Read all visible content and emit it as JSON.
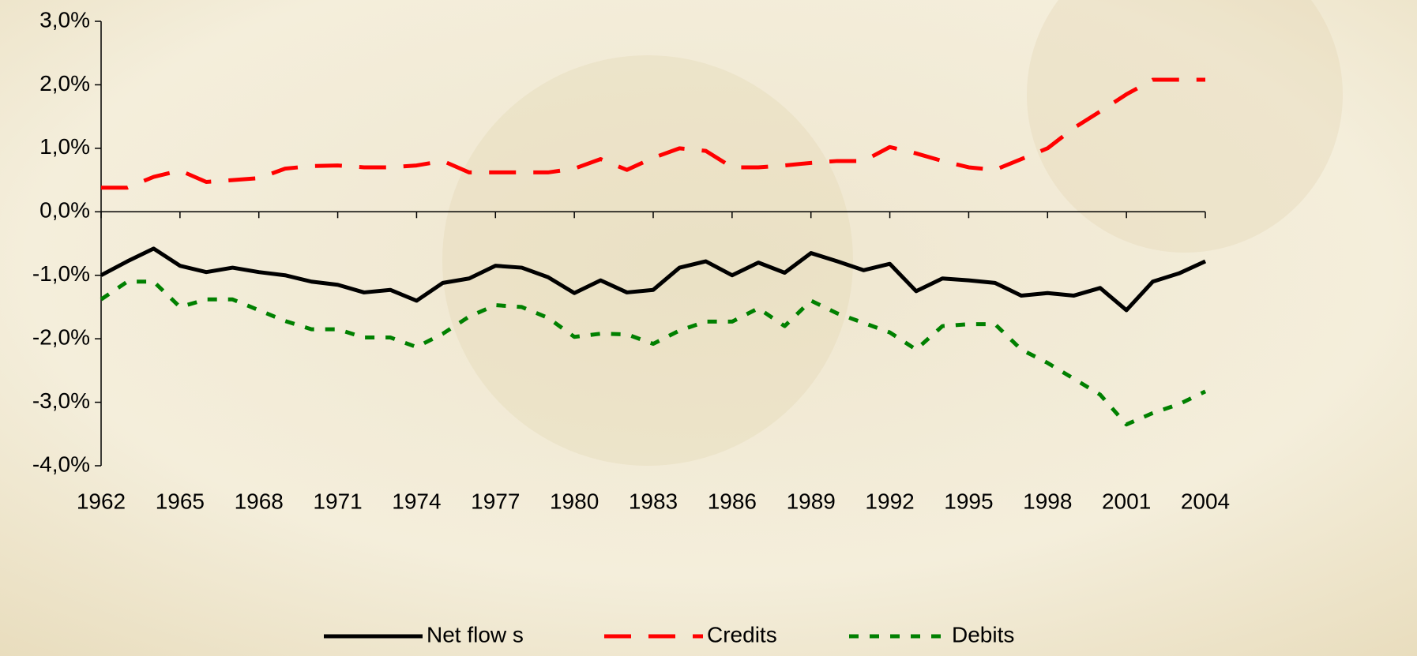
{
  "chart_data": {
    "type": "line",
    "x": [
      1962,
      1963,
      1964,
      1965,
      1966,
      1967,
      1968,
      1969,
      1970,
      1971,
      1972,
      1973,
      1974,
      1975,
      1976,
      1977,
      1978,
      1979,
      1980,
      1981,
      1982,
      1983,
      1984,
      1985,
      1986,
      1987,
      1988,
      1989,
      1990,
      1991,
      1992,
      1993,
      1994,
      1995,
      1996,
      1997,
      1998,
      1999,
      2000,
      2001,
      2002,
      2003,
      2004
    ],
    "xlim": [
      1962,
      2004
    ],
    "xticks": [
      1962,
      1965,
      1968,
      1971,
      1974,
      1977,
      1980,
      1983,
      1986,
      1989,
      1992,
      1995,
      1998,
      2001,
      2004
    ],
    "ylim": [
      -4,
      3
    ],
    "yticks": [
      {
        "value": -4,
        "label": "-4,0%"
      },
      {
        "value": -3,
        "label": "-3,0%"
      },
      {
        "value": -2,
        "label": "-2,0%"
      },
      {
        "value": -1,
        "label": "-1,0%"
      },
      {
        "value": 0,
        "label": "0,0%"
      },
      {
        "value": 1,
        "label": "1,0%"
      },
      {
        "value": 2,
        "label": "2,0%"
      },
      {
        "value": 3,
        "label": "3,0%"
      }
    ],
    "legend": "bottom",
    "series": [
      {
        "name": "Net flow s",
        "color": "#000000",
        "dash": "solid",
        "values": [
          -1.0,
          -0.78,
          -0.58,
          -0.85,
          -0.95,
          -0.88,
          -0.95,
          -1.0,
          -1.1,
          -1.15,
          -1.27,
          -1.23,
          -1.4,
          -1.12,
          -1.05,
          -0.85,
          -0.88,
          -1.03,
          -1.28,
          -1.08,
          -1.27,
          -1.23,
          -0.88,
          -0.78,
          -1.0,
          -0.8,
          -0.96,
          -0.65,
          -0.78,
          -0.92,
          -0.82,
          -1.25,
          -1.05,
          -1.08,
          -1.12,
          -1.32,
          -1.28,
          -1.32,
          -1.2,
          -1.55,
          -1.1,
          -0.97,
          -0.78
        ]
      },
      {
        "name": "Credits",
        "color": "#ff0000",
        "dash": "dashed",
        "values": [
          0.38,
          0.38,
          0.55,
          0.65,
          0.47,
          0.5,
          0.53,
          0.68,
          0.72,
          0.73,
          0.7,
          0.7,
          0.73,
          0.8,
          0.62,
          0.62,
          0.62,
          0.62,
          0.68,
          0.83,
          0.66,
          0.85,
          1.0,
          0.96,
          0.7,
          0.7,
          0.73,
          0.77,
          0.8,
          0.8,
          1.02,
          0.92,
          0.8,
          0.7,
          0.66,
          0.83,
          1.0,
          1.32,
          1.58,
          1.85,
          2.08,
          2.08,
          2.08
        ]
      },
      {
        "name": "Debits",
        "color": "#008000",
        "dash": "dotted",
        "values": [
          -1.38,
          -1.1,
          -1.1,
          -1.5,
          -1.38,
          -1.38,
          -1.55,
          -1.72,
          -1.85,
          -1.85,
          -1.98,
          -1.98,
          -2.13,
          -1.92,
          -1.65,
          -1.47,
          -1.5,
          -1.67,
          -1.97,
          -1.92,
          -1.93,
          -2.08,
          -1.87,
          -1.73,
          -1.73,
          -1.52,
          -1.8,
          -1.4,
          -1.6,
          -1.75,
          -1.9,
          -2.17,
          -1.8,
          -1.77,
          -1.77,
          -2.17,
          -2.38,
          -2.63,
          -2.88,
          -3.35,
          -3.17,
          -3.03,
          -2.83
        ]
      }
    ]
  }
}
